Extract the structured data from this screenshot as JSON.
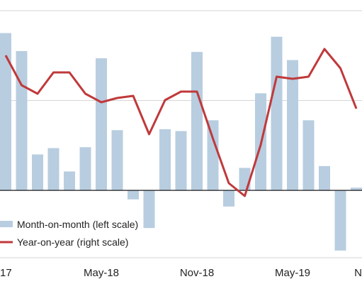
{
  "chart_data": {
    "type": "bar",
    "x_tick_labels": [
      "17",
      "May-18",
      "Nov-18",
      "May-19",
      "N"
    ],
    "x_tick_indices": [
      0,
      6,
      12,
      18,
      24
    ],
    "series": [
      {
        "name": "Month-on-month (left scale)",
        "type": "bar",
        "axis": "left",
        "color": "#b8cde0",
        "values": [
          1.75,
          1.55,
          0.4,
          0.47,
          0.21,
          0.48,
          1.47,
          0.67,
          -0.1,
          -0.42,
          0.68,
          0.66,
          1.54,
          0.78,
          -0.18,
          0.25,
          1.08,
          1.71,
          1.45,
          0.78,
          0.27,
          -0.67,
          0.03
        ]
      },
      {
        "name": "Year-on-year (right scale)",
        "type": "line",
        "axis": "right",
        "color": "#c0393b",
        "values": [
          4.7,
          4.0,
          3.8,
          4.3,
          4.3,
          3.8,
          3.6,
          3.7,
          3.75,
          2.85,
          3.65,
          3.85,
          3.85,
          2.75,
          1.7,
          1.4,
          2.6,
          4.2,
          4.15,
          4.2,
          4.85,
          4.4,
          3.45
        ]
      }
    ],
    "left_axis": {
      "range": [
        -0.75,
        2.0
      ]
    },
    "right_axis": {
      "range": [
        -0.05,
        5.75
      ]
    },
    "grid": true,
    "legend_placement": "bottom-left"
  }
}
